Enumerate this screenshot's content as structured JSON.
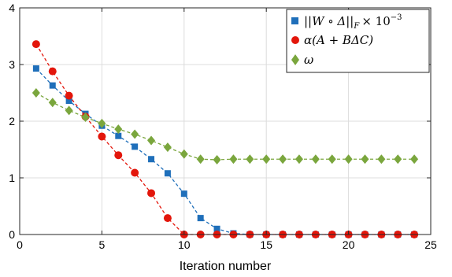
{
  "chart_data": {
    "type": "line",
    "title": "",
    "xlabel": "Iteration number",
    "ylabel": "",
    "xlim": [
      0,
      25
    ],
    "ylim": [
      0,
      4
    ],
    "xticks": [
      0,
      5,
      10,
      15,
      20,
      25
    ],
    "yticks": [
      0,
      1,
      2,
      3,
      4
    ],
    "grid": true,
    "legend_position": "top-right",
    "series": [
      {
        "name": "||W ∘ Δ||_F × 10^-3",
        "color": "#1f6fba",
        "marker": "square",
        "x": [
          1,
          2,
          3,
          4,
          5,
          6,
          7,
          8,
          9,
          10,
          11,
          12,
          13,
          14,
          15,
          16,
          17,
          18,
          19,
          20,
          21,
          22,
          23,
          24
        ],
        "values": [
          2.93,
          2.63,
          2.36,
          2.13,
          1.92,
          1.74,
          1.55,
          1.33,
          1.08,
          0.72,
          0.29,
          0.1,
          0.02,
          0,
          0,
          0,
          0,
          0,
          0,
          0,
          0,
          0,
          0,
          0
        ]
      },
      {
        "name": "α(A + BΔC)",
        "color": "#e3160b",
        "marker": "circle",
        "x": [
          1,
          2,
          3,
          4,
          5,
          6,
          7,
          8,
          9,
          10,
          11,
          12,
          13,
          14,
          15,
          16,
          17,
          18,
          19,
          20,
          21,
          22,
          23,
          24
        ],
        "values": [
          3.36,
          2.88,
          2.45,
          2.08,
          1.73,
          1.4,
          1.09,
          0.73,
          0.29,
          0,
          0,
          0,
          0,
          0,
          0,
          0,
          0,
          0,
          0,
          0,
          0,
          0,
          0,
          0
        ]
      },
      {
        "name": "ω",
        "color": "#7aa63d",
        "marker": "diamond",
        "x": [
          1,
          2,
          3,
          4,
          5,
          6,
          7,
          8,
          9,
          10,
          11,
          12,
          13,
          14,
          15,
          16,
          17,
          18,
          19,
          20,
          21,
          22,
          23,
          24
        ],
        "values": [
          2.5,
          2.33,
          2.19,
          2.07,
          1.96,
          1.86,
          1.77,
          1.66,
          1.54,
          1.42,
          1.33,
          1.32,
          1.33,
          1.33,
          1.33,
          1.33,
          1.33,
          1.33,
          1.33,
          1.33,
          1.33,
          1.33,
          1.33,
          1.33
        ]
      }
    ]
  },
  "legend": {
    "entry_1": "||W ∘ Δ||",
    "entry_1_sub": "F",
    "entry_1_times": "× 10",
    "entry_1_sup": "−3",
    "entry_2": "α(A + BΔC)",
    "entry_3": "ω"
  }
}
